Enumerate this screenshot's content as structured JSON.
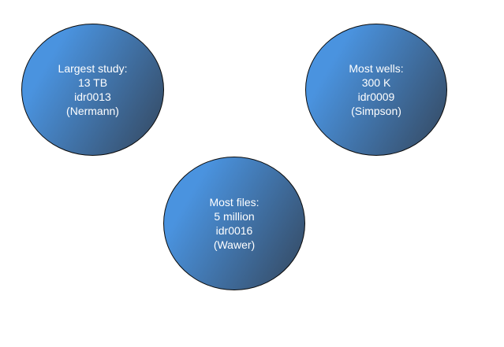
{
  "circles": [
    {
      "lines": [
        "Largest study:",
        "13 TB",
        "idr0013",
        "(Nermann)"
      ]
    },
    {
      "lines": [
        "Most wells:",
        "300 K",
        "idr0009",
        "(Simpson)"
      ]
    },
    {
      "lines": [
        "Most files:",
        "5 million",
        "idr0016",
        "(Wawer)"
      ]
    }
  ],
  "colors": {
    "gradient_start": "#4a93df",
    "gradient_end": "#34465c",
    "outline": "#0b0b0b",
    "text": "#ffffff"
  }
}
